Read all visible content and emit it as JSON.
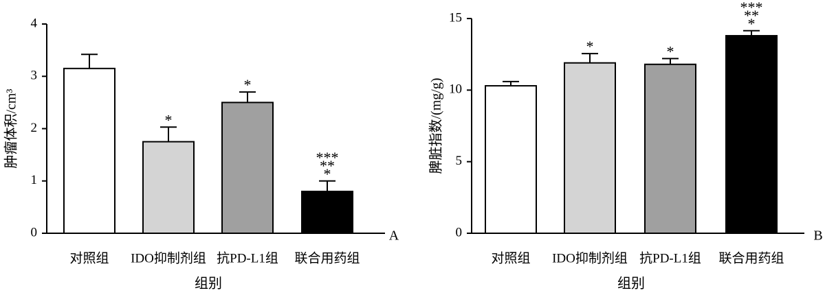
{
  "chart_data": [
    {
      "type": "bar",
      "panel": "A",
      "ylabel": "肿瘤体积/cm³",
      "xlabel": "组别",
      "categories": [
        "对照组",
        "IDO抑制剂组",
        "抗PD-L1组",
        "联合用药组"
      ],
      "values": [
        3.15,
        1.75,
        2.5,
        0.8
      ],
      "errors": [
        0.27,
        0.28,
        0.2,
        0.2
      ],
      "colors": [
        "#ffffff",
        "#d4d4d4",
        "#a0a0a0",
        "#000000"
      ],
      "annotations": [
        null,
        [
          "*"
        ],
        [
          "*"
        ],
        [
          "***",
          "**",
          "*"
        ]
      ],
      "ylim": [
        0,
        4
      ],
      "yticks": [
        0,
        1,
        2,
        3,
        4
      ]
    },
    {
      "type": "bar",
      "panel": "B",
      "ylabel": "脾脏指数/(mg/g)",
      "xlabel": "组别",
      "categories": [
        "对照组",
        "IDO抑制剂组",
        "抗PD-L1组",
        "联合用药组"
      ],
      "values": [
        10.3,
        11.9,
        11.8,
        13.8
      ],
      "errors": [
        0.3,
        0.65,
        0.4,
        0.35
      ],
      "colors": [
        "#ffffff",
        "#d4d4d4",
        "#a0a0a0",
        "#000000"
      ],
      "annotations": [
        null,
        [
          "*"
        ],
        [
          "*"
        ],
        [
          "***",
          "**",
          "*"
        ]
      ],
      "ylim": [
        0,
        15
      ],
      "yticks": [
        0,
        5,
        10,
        15
      ]
    }
  ]
}
